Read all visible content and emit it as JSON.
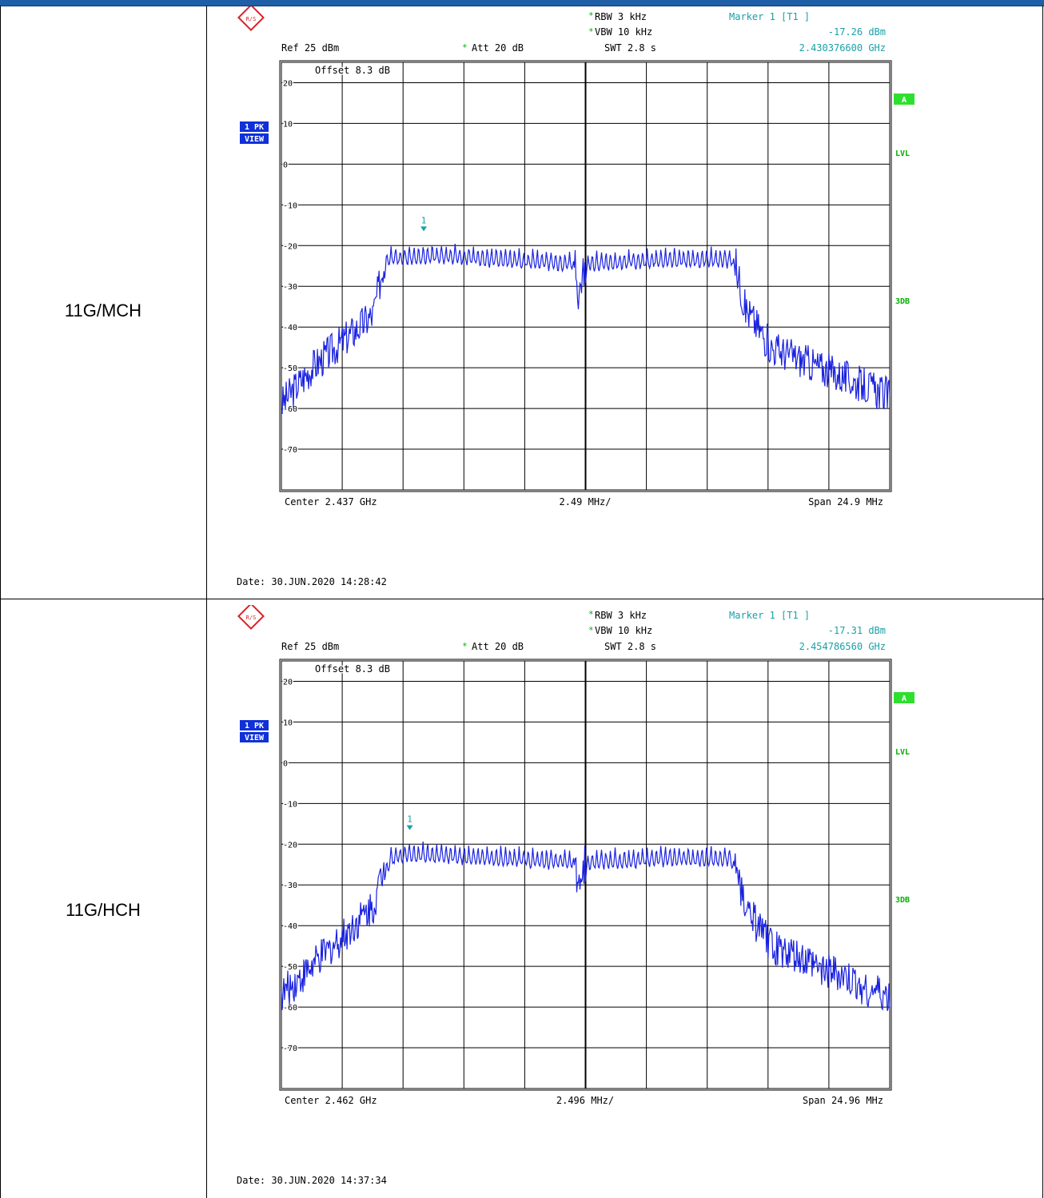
{
  "colors": {
    "header_bar": "#1f5fa8",
    "trace": "#1a22e0",
    "marker": "#1aa0a8",
    "status_green": "#2ee02e",
    "badge_blue": "#1030d8"
  },
  "rows": [
    {
      "label": "11G/MCH",
      "rbw": "RBW 3 kHz",
      "vbw": "VBW 10 kHz",
      "swt": "SWT 2.8 s",
      "ref": "Ref  25 dBm",
      "att": "Att  20 dB",
      "offset": "Offset  8.3 dB",
      "marker_title": "Marker 1 [T1 ]",
      "marker_level": "-17.26 dBm",
      "marker_freq": "2.430376600 GHz",
      "marker_num": "1",
      "badge1": "1 PK",
      "badge2": "VIEW",
      "side_a": "A",
      "side_lvl": "LVL",
      "side_3db": "3DB",
      "center": "Center  2.437 GHz",
      "per_div": "2.49 MHz/",
      "span": "Span  24.9 MHz",
      "date": "Date: 30.JUN.2020  14:28:42",
      "y_ticks": [
        "20",
        "10",
        "0",
        "-10",
        "-20",
        "-30",
        "-40",
        "-50",
        "-60",
        "-70"
      ]
    },
    {
      "label": "11G/HCH",
      "rbw": "RBW 3 kHz",
      "vbw": "VBW 10 kHz",
      "swt": "SWT 2.8 s",
      "ref": "Ref  25 dBm",
      "att": "Att  20 dB",
      "offset": "Offset  8.3 dB",
      "marker_title": "Marker 1 [T1 ]",
      "marker_level": "-17.31 dBm",
      "marker_freq": "2.454786560 GHz",
      "marker_num": "1",
      "badge1": "1 PK",
      "badge2": "VIEW",
      "side_a": "A",
      "side_lvl": "LVL",
      "side_3db": "3DB",
      "center": "Center  2.462 GHz",
      "per_div": "2.496 MHz/",
      "span": "Span  24.96 MHz",
      "date": "Date: 30.JUN.2020  14:37:34",
      "y_ticks": [
        "20",
        "10",
        "0",
        "-10",
        "-20",
        "-30",
        "-40",
        "-50",
        "-60",
        "-70"
      ]
    }
  ],
  "chart_data": [
    {
      "type": "line",
      "title": "",
      "xlabel": "",
      "ylabel": "",
      "ylim": [
        -80,
        25
      ],
      "xlim": [
        2.42455,
        2.44945
      ],
      "series": [
        {
          "x": [
            2.42455,
            2.4258,
            2.4283,
            2.4289,
            2.4305,
            2.4338,
            2.4365,
            2.4367,
            2.4371,
            2.44,
            2.443,
            2.4435,
            2.4446,
            2.44945
          ],
          "values": [
            -59,
            -50,
            -37,
            -20,
            -19,
            -20,
            -21,
            -32,
            -21,
            -20,
            -20,
            -35,
            -45,
            -57
          ]
        }
      ],
      "marker": {
        "x": 2.4303766,
        "y": -17.26
      }
    },
    {
      "type": "line",
      "title": "",
      "xlabel": "",
      "ylabel": "",
      "ylim": [
        -80,
        25
      ],
      "xlim": [
        2.44952,
        2.47448
      ],
      "series": [
        {
          "x": [
            2.44952,
            2.4508,
            2.4533,
            2.454,
            2.4548,
            2.4588,
            2.4615,
            2.4617,
            2.4621,
            2.465,
            2.468,
            2.4685,
            2.4696,
            2.47448
          ],
          "values": [
            -57,
            -50,
            -35,
            -20,
            -19,
            -20,
            -21,
            -32,
            -21,
            -20,
            -20,
            -35,
            -45,
            -58
          ]
        }
      ],
      "marker": {
        "x": 2.45478656,
        "y": -17.31
      }
    }
  ]
}
